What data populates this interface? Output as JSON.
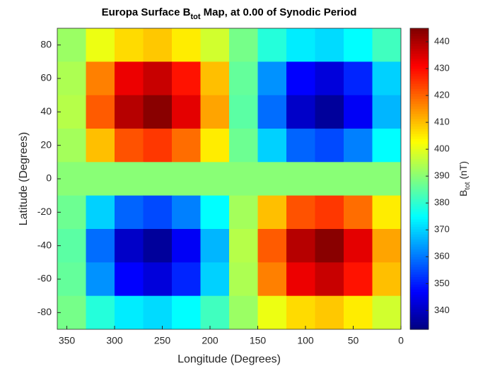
{
  "chart_data": {
    "type": "heatmap",
    "title": [
      "Europa Surface B",
      "tot",
      " Map, at 0.00 of Synodic Period"
    ],
    "x_label": "Longitude (Degrees)",
    "y_label": "Latitude (Degrees)",
    "colorbar_label": [
      "B",
      "tot",
      " (nT)"
    ],
    "x": [
      345,
      315,
      285,
      255,
      225,
      195,
      165,
      135,
      105,
      75,
      45,
      15
    ],
    "y": [
      80,
      60,
      40,
      20,
      0,
      -20,
      -40,
      -60,
      -80
    ],
    "z": [
      [
        392,
        401,
        407,
        409,
        405,
        398,
        388,
        379,
        373,
        371,
        375,
        382
      ],
      [
        394,
        417,
        433,
        437,
        429,
        410,
        386,
        363,
        347,
        343,
        351,
        370
      ],
      [
        395,
        421,
        439,
        444,
        434,
        413,
        385,
        359,
        341,
        336,
        346,
        367
      ],
      [
        393,
        410,
        422,
        425,
        419,
        405,
        387,
        370,
        358,
        355,
        361,
        375
      ],
      [
        390,
        390,
        390,
        390,
        390,
        390,
        390,
        390,
        390,
        390,
        390,
        390
      ],
      [
        387,
        370,
        358,
        355,
        361,
        375,
        393,
        410,
        422,
        425,
        419,
        405
      ],
      [
        385,
        359,
        341,
        336,
        346,
        367,
        395,
        421,
        439,
        444,
        434,
        413
      ],
      [
        386,
        363,
        347,
        343,
        351,
        370,
        394,
        417,
        433,
        437,
        429,
        410
      ],
      [
        388,
        379,
        373,
        371,
        375,
        382,
        392,
        401,
        407,
        409,
        405,
        398
      ]
    ],
    "xlim": [
      360,
      0
    ],
    "xticks": [
      350,
      300,
      250,
      200,
      150,
      100,
      50,
      0
    ],
    "ylim": [
      -90,
      90
    ],
    "yticks": [
      -80,
      -60,
      -40,
      -20,
      0,
      20,
      40,
      60,
      80
    ],
    "clim": [
      333,
      445
    ],
    "cticks": [
      340,
      350,
      360,
      370,
      380,
      390,
      400,
      410,
      420,
      430,
      440
    ],
    "colormap": "jet"
  }
}
